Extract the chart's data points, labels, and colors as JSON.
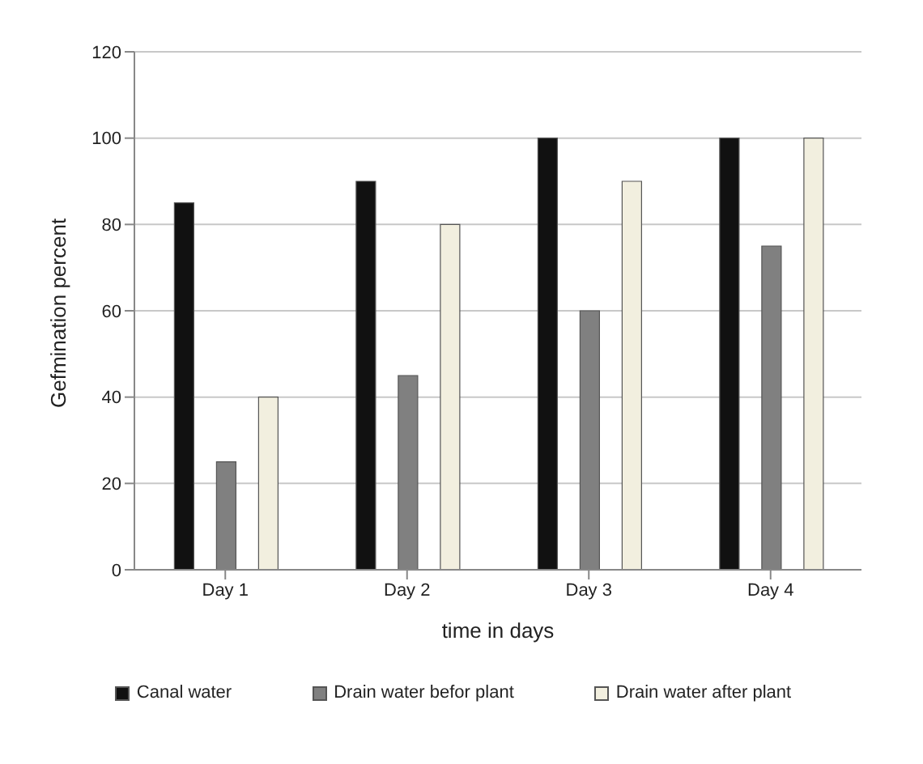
{
  "chart_data": {
    "type": "bar",
    "xlabel": "time in days",
    "ylabel": "Gefmination percent",
    "categories": [
      "Day 1",
      "Day 2",
      "Day 3",
      "Day 4"
    ],
    "series": [
      {
        "name": "Canal water",
        "color": "#111111",
        "values": [
          85,
          90,
          100,
          100
        ]
      },
      {
        "name": "Drain water befor plant",
        "color": "#808080",
        "values": [
          25,
          45,
          60,
          75
        ]
      },
      {
        "name": "Drain water after plant",
        "color": "#f2efdf",
        "values": [
          40,
          80,
          90,
          100
        ]
      }
    ],
    "ylim": [
      0,
      120
    ],
    "yticks": [
      0,
      20,
      40,
      60,
      80,
      100,
      120
    ],
    "grid": "y",
    "legend": "bottom"
  }
}
